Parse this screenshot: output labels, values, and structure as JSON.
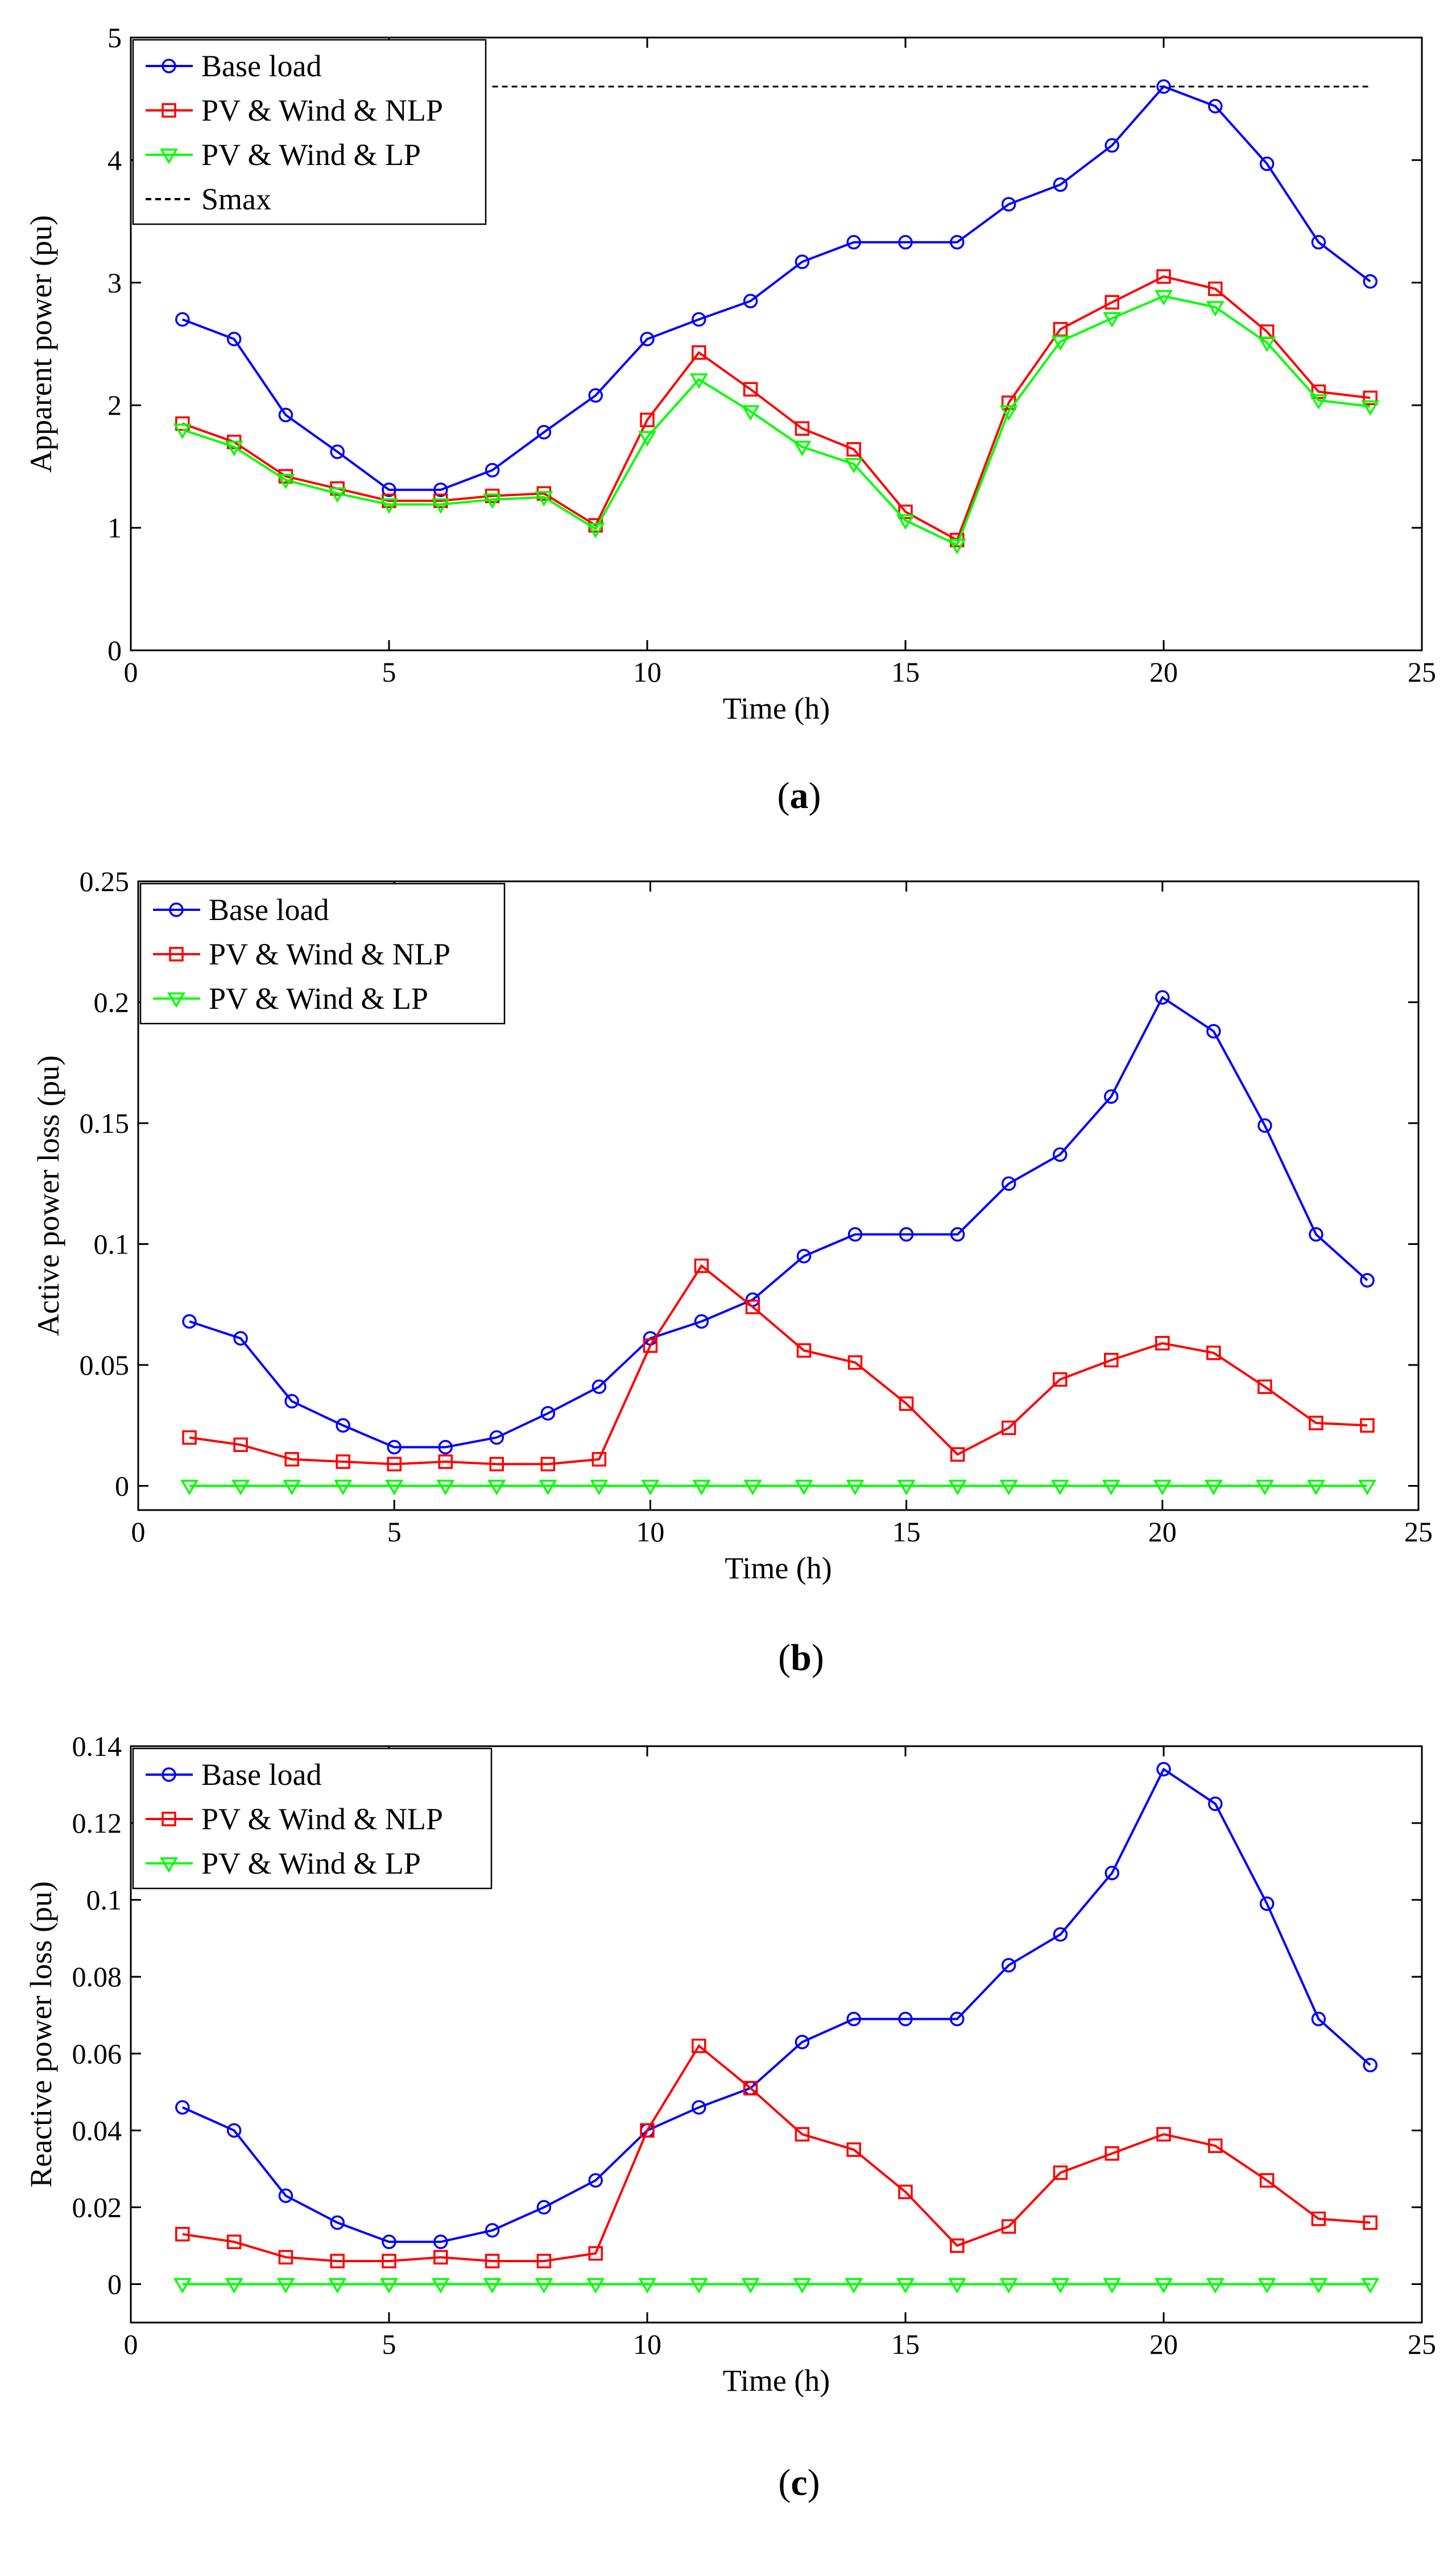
{
  "chart_data": [
    {
      "type": "line",
      "caption_letter": "a",
      "xlabel": "Time (h)",
      "ylabel": "Apparent power (pu)",
      "xlim": [
        0,
        25
      ],
      "ylim": [
        0,
        5
      ],
      "xticks": [
        0,
        5,
        10,
        15,
        20,
        25
      ],
      "yticks": [
        0,
        1,
        2,
        3,
        4,
        5
      ],
      "legend_position": "top-left",
      "x": [
        1,
        2,
        3,
        4,
        5,
        6,
        7,
        8,
        9,
        10,
        11,
        12,
        13,
        14,
        15,
        16,
        17,
        18,
        19,
        20,
        21,
        22,
        23,
        24
      ],
      "series": [
        {
          "name": "Base load",
          "color": "#0000ff",
          "marker": "circle",
          "values": [
            2.7,
            2.54,
            1.92,
            1.62,
            1.31,
            1.31,
            1.47,
            1.78,
            2.08,
            2.54,
            2.7,
            2.85,
            3.17,
            3.33,
            3.33,
            3.33,
            3.64,
            3.8,
            4.12,
            4.6,
            4.44,
            3.97,
            3.33,
            3.01
          ]
        },
        {
          "name": "PV & Wind & NLP",
          "color": "#ff0000",
          "marker": "square",
          "values": [
            1.85,
            1.7,
            1.42,
            1.32,
            1.22,
            1.22,
            1.26,
            1.28,
            1.02,
            1.88,
            2.43,
            2.13,
            1.81,
            1.64,
            1.13,
            0.9,
            2.02,
            2.62,
            2.84,
            3.05,
            2.95,
            2.6,
            2.11,
            2.06
          ]
        },
        {
          "name": "PV & Wind & LP",
          "color": "#00ff00",
          "marker": "triangle-down",
          "values": [
            1.8,
            1.66,
            1.39,
            1.28,
            1.19,
            1.19,
            1.23,
            1.25,
            0.99,
            1.74,
            2.21,
            1.95,
            1.66,
            1.52,
            1.06,
            0.86,
            1.95,
            2.52,
            2.71,
            2.89,
            2.8,
            2.51,
            2.04,
            1.99
          ]
        }
      ],
      "reference_lines": [
        {
          "name": "Smax",
          "color": "#000000",
          "style": "dashed",
          "y": 4.6,
          "x_range": [
            7,
            24
          ]
        }
      ]
    },
    {
      "type": "line",
      "caption_letter": "b",
      "xlabel": "Time (h)",
      "ylabel": "Active power loss (pu)",
      "xlim": [
        0,
        25
      ],
      "ylim": [
        -0.01,
        0.25
      ],
      "xticks": [
        0,
        5,
        10,
        15,
        20,
        25
      ],
      "yticks": [
        0,
        0.05,
        0.1,
        0.15,
        0.2,
        0.25
      ],
      "ytick_labels": [
        "0",
        "0.05",
        "0.1",
        "0.15",
        "0.2",
        "0.25"
      ],
      "legend_position": "top-left",
      "x": [
        1,
        2,
        3,
        4,
        5,
        6,
        7,
        8,
        9,
        10,
        11,
        12,
        13,
        14,
        15,
        16,
        17,
        18,
        19,
        20,
        21,
        22,
        23,
        24
      ],
      "series": [
        {
          "name": "Base load",
          "color": "#0000ff",
          "marker": "circle",
          "values": [
            0.068,
            0.061,
            0.035,
            0.025,
            0.016,
            0.016,
            0.02,
            0.03,
            0.041,
            0.061,
            0.068,
            0.077,
            0.095,
            0.104,
            0.104,
            0.104,
            0.125,
            0.137,
            0.161,
            0.202,
            0.188,
            0.149,
            0.104,
            0.085
          ]
        },
        {
          "name": "PV & Wind & NLP",
          "color": "#ff0000",
          "marker": "square",
          "values": [
            0.02,
            0.017,
            0.011,
            0.01,
            0.009,
            0.01,
            0.009,
            0.009,
            0.011,
            0.058,
            0.091,
            0.074,
            0.056,
            0.051,
            0.034,
            0.013,
            0.024,
            0.044,
            0.052,
            0.059,
            0.055,
            0.041,
            0.026,
            0.025
          ]
        },
        {
          "name": "PV & Wind & LP",
          "color": "#00ff00",
          "marker": "triangle-down",
          "values": [
            0,
            0,
            0,
            0,
            0,
            0,
            0,
            0,
            0,
            0,
            0,
            0,
            0,
            0,
            0,
            0,
            0,
            0,
            0,
            0,
            0,
            0,
            0,
            0
          ]
        }
      ]
    },
    {
      "type": "line",
      "caption_letter": "c",
      "xlabel": "Time (h)",
      "ylabel": "Reactive power loss (pu)",
      "xlim": [
        0,
        25
      ],
      "ylim": [
        -0.01,
        0.14
      ],
      "xticks": [
        0,
        5,
        10,
        15,
        20,
        25
      ],
      "yticks": [
        0,
        0.02,
        0.04,
        0.06,
        0.08,
        0.1,
        0.12,
        0.14
      ],
      "ytick_labels": [
        "0",
        "0.02",
        "0.04",
        "0.06",
        "0.08",
        "0.1",
        "0.12",
        "0.14"
      ],
      "legend_position": "top-left",
      "x": [
        1,
        2,
        3,
        4,
        5,
        6,
        7,
        8,
        9,
        10,
        11,
        12,
        13,
        14,
        15,
        16,
        17,
        18,
        19,
        20,
        21,
        22,
        23,
        24
      ],
      "series": [
        {
          "name": "Base load",
          "color": "#0000ff",
          "marker": "circle",
          "values": [
            0.046,
            0.04,
            0.023,
            0.016,
            0.011,
            0.011,
            0.014,
            0.02,
            0.027,
            0.04,
            0.046,
            0.051,
            0.063,
            0.069,
            0.069,
            0.069,
            0.083,
            0.091,
            0.107,
            0.134,
            0.125,
            0.099,
            0.069,
            0.057
          ]
        },
        {
          "name": "PV & Wind & NLP",
          "color": "#ff0000",
          "marker": "square",
          "values": [
            0.013,
            0.011,
            0.007,
            0.006,
            0.006,
            0.007,
            0.006,
            0.006,
            0.008,
            0.04,
            0.062,
            0.051,
            0.039,
            0.035,
            0.024,
            0.01,
            0.015,
            0.029,
            0.034,
            0.039,
            0.036,
            0.027,
            0.017,
            0.016
          ]
        },
        {
          "name": "PV & Wind & LP",
          "color": "#00ff00",
          "marker": "triangle-down",
          "values": [
            0,
            0,
            0,
            0,
            0,
            0,
            0,
            0,
            0,
            0,
            0,
            0,
            0,
            0,
            0,
            0,
            0,
            0,
            0,
            0,
            0,
            0,
            0,
            0
          ]
        }
      ]
    }
  ]
}
